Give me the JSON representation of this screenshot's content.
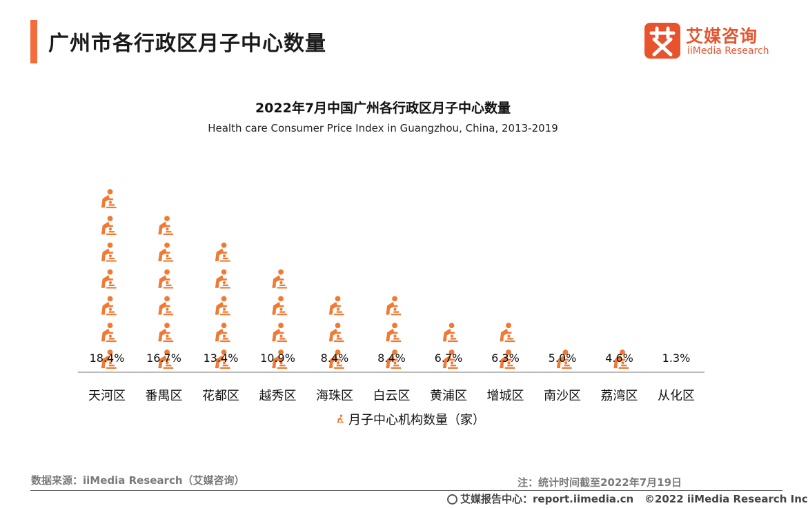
{
  "header": {
    "title": "广州市各行政区月子中心数量"
  },
  "logo": {
    "cn": "艾媒咨询",
    "en": "iiMedia Research",
    "mark_glyph": "艾"
  },
  "chart_data": {
    "type": "bar",
    "title": "2022年7月中国广州各行政区月子中心数量",
    "subtitle": "Health care Consumer Price Index in Guangzhou, China, 2013-2019",
    "categories": [
      "天河区",
      "番禺区",
      "花都区",
      "越秀区",
      "海珠区",
      "白云区",
      "黄浦区",
      "增城区",
      "南沙区",
      "荔湾区",
      "从化区"
    ],
    "series": [
      {
        "name": "月子中心机构数量（家）",
        "values": [
          18.4,
          16.7,
          13.4,
          10.9,
          8.4,
          8.4,
          6.7,
          6.3,
          5.0,
          4.6,
          1.3
        ]
      }
    ],
    "data_labels": [
      "18.4%",
      "16.7%",
      "13.4%",
      "10.9%",
      "8.4%",
      "8.4%",
      "6.7%",
      "6.3%",
      "5.0%",
      "4.6%",
      "1.3%"
    ],
    "legend_position": "bottom",
    "grid": false,
    "color": "#f07a34",
    "icon": "caregiver-baby-icon"
  },
  "footer": {
    "source": "数据来源：iiMedia Research（艾媒咨询）",
    "note": "注：统计时间截至2022年7月19日",
    "site": "艾媒报告中心：report.iimedia.cn",
    "copyright": "©2022  iiMedia Research  Inc"
  }
}
